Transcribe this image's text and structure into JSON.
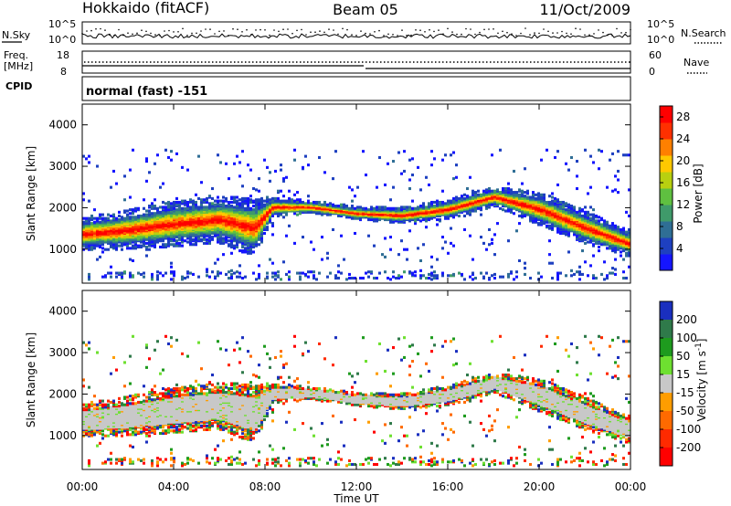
{
  "header": {
    "station": "Hokkaido (fitACF)",
    "beam": "Beam 05",
    "date": "11/Oct/2009"
  },
  "strip": {
    "nsky_label": "N.Sky",
    "nsky_ticks": [
      "10^5",
      "10^0"
    ],
    "nsearch_label": "N.Search",
    "nsearch_ticks": [
      "10^5",
      "10^0"
    ],
    "freq_label": "Freq.",
    "freq_unit": "[MHz]",
    "freq_ticks": [
      "18",
      "8"
    ],
    "nave_label": "Nave",
    "nave_ticks": [
      "60",
      "0"
    ],
    "cpid_label": "CPID",
    "cpid_value": "normal (fast) -151"
  },
  "chart_data": [
    {
      "type": "heatmap",
      "title": "",
      "ylabel": "Slant Range [km]",
      "xlabel": "",
      "x_ticks": [
        "00:00",
        "04:00",
        "08:00",
        "12:00",
        "16:00",
        "20:00",
        "00:00"
      ],
      "y_ticks": [
        1000,
        2000,
        3000,
        4000
      ],
      "ylim": [
        180,
        4500
      ],
      "xlim_hours": [
        0,
        24
      ],
      "colorbar": {
        "label": "Power [dB]",
        "ticks": [
          4,
          8,
          12,
          16,
          20,
          24,
          28
        ],
        "range": [
          0,
          30
        ],
        "colors": [
          "#1515ff",
          "#1e40c0",
          "#2f6e95",
          "#3f9a6a",
          "#5fc040",
          "#b8d010",
          "#ffc800",
          "#ff8000",
          "#ff3000",
          "#ff0000"
        ]
      },
      "scatter_band_km": [
        {
          "t": 0,
          "center": 1350,
          "width": 500
        },
        {
          "t": 2,
          "center": 1450,
          "width": 600
        },
        {
          "t": 4,
          "center": 1600,
          "width": 700
        },
        {
          "t": 6,
          "center": 1700,
          "width": 700
        },
        {
          "t": 7.5,
          "center": 1500,
          "width": 900
        },
        {
          "t": 8.3,
          "center": 2000,
          "width": 300
        },
        {
          "t": 10,
          "center": 2000,
          "width": 200
        },
        {
          "t": 12,
          "center": 1850,
          "width": 200
        },
        {
          "t": 14,
          "center": 1800,
          "width": 250
        },
        {
          "t": 16,
          "center": 1950,
          "width": 300
        },
        {
          "t": 18,
          "center": 2250,
          "width": 300
        },
        {
          "t": 20,
          "center": 1950,
          "width": 500
        },
        {
          "t": 22,
          "center": 1500,
          "width": 500
        },
        {
          "t": 24,
          "center": 1100,
          "width": 400
        }
      ],
      "peak_power_db": [
        24,
        26,
        28,
        28,
        26,
        30,
        30,
        30,
        28,
        30,
        30,
        28,
        28,
        26
      ]
    },
    {
      "type": "heatmap",
      "title": "",
      "ylabel": "Slant Range [km]",
      "xlabel": "Time UT",
      "x_ticks": [
        "00:00",
        "04:00",
        "08:00",
        "12:00",
        "16:00",
        "20:00",
        "00:00"
      ],
      "y_ticks": [
        1000,
        2000,
        3000,
        4000
      ],
      "ylim": [
        180,
        4500
      ],
      "xlim_hours": [
        0,
        24
      ],
      "colorbar": {
        "label": "Velocity [m s-1]",
        "ticks": [
          200,
          100,
          50,
          15,
          -15,
          -50,
          -100,
          -200
        ],
        "colors": [
          "#1a2fbf",
          "#2f7a4a",
          "#1e9b1e",
          "#6ee030",
          "#c8c8c8",
          "#ff9d00",
          "#ff6a00",
          "#ff2a00",
          "#ff0000"
        ]
      },
      "velocity_note": "ground scatter band near 0 m/s (gray)"
    }
  ]
}
